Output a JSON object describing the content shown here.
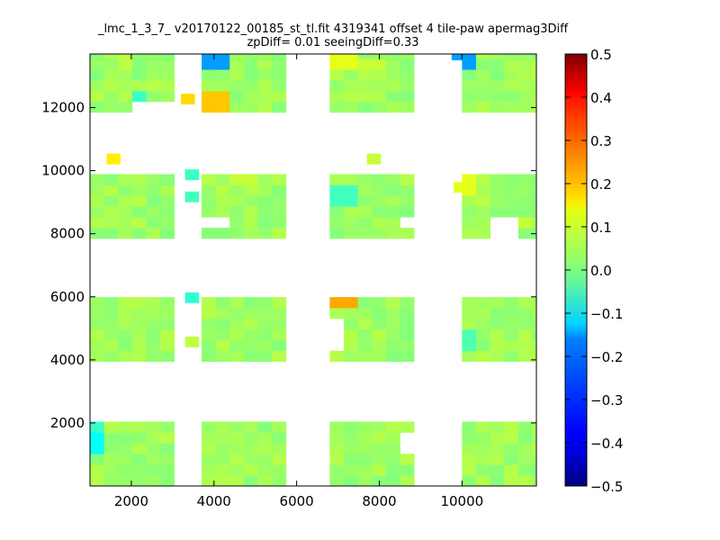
{
  "chart_data": {
    "type": "heatmap",
    "title_line_1": "_lmc_1_3_7_ v20170122_00185_st_tl.fit 4319341 offset 4 tile-paw apermag3Diff",
    "title_line_2": "zpDiff= 0.01 seeingDiff=0.33",
    "xlabel": "",
    "ylabel": "",
    "xlim": [
      1000,
      11800
    ],
    "ylim": [
      0,
      13700
    ],
    "x_ticks": [
      2000,
      4000,
      6000,
      8000,
      10000
    ],
    "y_ticks": [
      2000,
      4000,
      6000,
      8000,
      10000,
      12000
    ],
    "colorbar": {
      "colormap": "jet",
      "vmin": -0.5,
      "vmax": 0.5,
      "ticks": [
        "0.5",
        "0.4",
        "0.3",
        "0.2",
        "0.1",
        "0.0",
        "−0.1",
        "−0.2",
        "−0.3",
        "−0.4",
        "−0.5"
      ]
    },
    "cell_size": 340,
    "columns_x_start": [
      1000,
      3700,
      6800,
      10000
    ],
    "column_cells": 6,
    "rows_y_start": [
      0,
      3950,
      7850,
      11850
    ],
    "row_cells": 6,
    "baseline_value": 0.03,
    "missing_cells": [
      {
        "x": 2000,
        "y": 11850
      },
      {
        "x": 2500,
        "y": 11850
      },
      {
        "x": 9400,
        "y": 0
      },
      {
        "x": 3800,
        "y": 8200
      },
      {
        "x": 8800,
        "y": 1300
      },
      {
        "x": 10900,
        "y": 8200
      },
      {
        "x": 10900,
        "y": 7850
      },
      {
        "x": 6800,
        "y": 5000
      },
      {
        "x": 8800,
        "y": 8200
      },
      {
        "x": 6800,
        "y": 4500
      }
    ],
    "special_cells": [
      {
        "x": 3800,
        "y": 13500,
        "value": -0.22
      },
      {
        "x": 9750,
        "y": 13500,
        "value": -0.22
      },
      {
        "x": 1000,
        "y": 1200,
        "value": -0.12
      },
      {
        "x": 3800,
        "y": 12100,
        "value": 0.18
      },
      {
        "x": 3200,
        "y": 12100,
        "value": 0.16
      },
      {
        "x": 1400,
        "y": 10200,
        "value": 0.14
      },
      {
        "x": 7700,
        "y": 10200,
        "value": 0.07
      },
      {
        "x": 6900,
        "y": 5800,
        "value": 0.21
      },
      {
        "x": 9800,
        "y": 9300,
        "value": 0.1
      },
      {
        "x": 6900,
        "y": 13500,
        "value": 0.1
      },
      {
        "x": 7700,
        "y": 13200,
        "value": 0.07
      },
      {
        "x": 6800,
        "y": 4400,
        "value": 0.09
      },
      {
        "x": 3300,
        "y": 5800,
        "value": -0.08
      },
      {
        "x": 3300,
        "y": 9700,
        "value": -0.07
      },
      {
        "x": 3300,
        "y": 9000,
        "value": -0.06
      },
      {
        "x": 6900,
        "y": 9100,
        "value": -0.06
      },
      {
        "x": 2000,
        "y": 12000,
        "value": -0.07
      },
      {
        "x": 1000,
        "y": 2000,
        "value": -0.07
      },
      {
        "x": 10000,
        "y": 4400,
        "value": -0.05
      },
      {
        "x": 10000,
        "y": 13200,
        "value": -0.05
      },
      {
        "x": 3300,
        "y": 4400,
        "value": 0.06
      },
      {
        "x": 1700,
        "y": 13300,
        "value": 0.06
      },
      {
        "x": 4500,
        "y": 9700,
        "value": 0.07
      },
      {
        "x": 11300,
        "y": 8200,
        "value": 0.07
      }
    ]
  }
}
